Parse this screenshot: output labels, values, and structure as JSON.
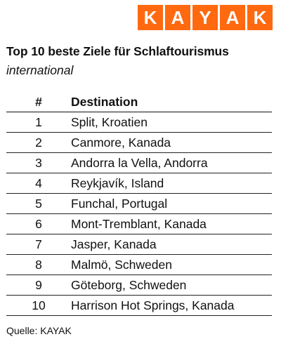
{
  "logo": {
    "letters": [
      "K",
      "A",
      "Y",
      "A",
      "K"
    ],
    "color": "#ff690f"
  },
  "title": "Top 10 beste Ziele für Schlaftourismus",
  "subtitle": "international",
  "table": {
    "headers": {
      "rank": "#",
      "destination": "Destination"
    },
    "rows": [
      {
        "rank": "1",
        "destination": "Split, Kroatien"
      },
      {
        "rank": "2",
        "destination": "Canmore, Kanada"
      },
      {
        "rank": "3",
        "destination": "Andorra la Vella, Andorra"
      },
      {
        "rank": "4",
        "destination": "Reykjavík, Island"
      },
      {
        "rank": "5",
        "destination": "Funchal, Portugal"
      },
      {
        "rank": "6",
        "destination": "Mont-Tremblant, Kanada"
      },
      {
        "rank": "7",
        "destination": "Jasper, Kanada"
      },
      {
        "rank": "8",
        "destination": "Malmö, Schweden"
      },
      {
        "rank": "9",
        "destination": "Göteborg, Schweden"
      },
      {
        "rank": "10",
        "destination": "Harrison Hot Springs, Kanada"
      }
    ]
  },
  "source": "Quelle: KAYAK"
}
